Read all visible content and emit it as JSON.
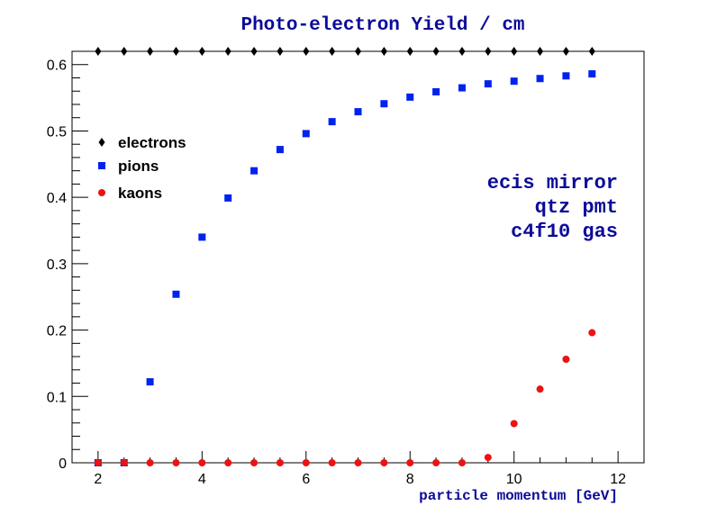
{
  "chart_data": {
    "type": "scatter",
    "title": "Photo-electron Yield / cm",
    "xlabel": "particle momentum [GeV]",
    "ylabel": "",
    "xlim": [
      1.5,
      12.5
    ],
    "ylim": [
      0,
      0.62
    ],
    "x_ticks": [
      2,
      4,
      6,
      8,
      10,
      12
    ],
    "y_ticks": [
      0,
      0.1,
      0.2,
      0.3,
      0.4,
      0.5,
      0.6
    ],
    "x_tick_labels": [
      "2",
      "4",
      "6",
      "8",
      "10",
      "12"
    ],
    "y_tick_labels": [
      "0",
      "0.1",
      "0.2",
      "0.3",
      "0.4",
      "0.5",
      "0.6"
    ],
    "grid": false,
    "legend_position": "left",
    "annotations": [
      "ecis mirror",
      "qtz pmt",
      "c4f10 gas"
    ],
    "series": [
      {
        "name": "electrons",
        "marker": "diamond",
        "color": "#000000",
        "x": [
          2,
          2.5,
          3,
          3.5,
          4,
          4.5,
          5,
          5.5,
          6,
          6.5,
          7,
          7.5,
          8,
          8.5,
          9,
          9.5,
          10,
          10.5,
          11,
          11.5
        ],
        "y": [
          0.62,
          0.62,
          0.62,
          0.62,
          0.62,
          0.62,
          0.62,
          0.62,
          0.62,
          0.62,
          0.62,
          0.62,
          0.62,
          0.62,
          0.62,
          0.62,
          0.62,
          0.62,
          0.62,
          0.62
        ]
      },
      {
        "name": "pions",
        "marker": "square",
        "color": "#0022ee",
        "x": [
          2,
          2.5,
          3,
          3.5,
          4,
          4.5,
          5,
          5.5,
          6,
          6.5,
          7,
          7.5,
          8,
          8.5,
          9,
          9.5,
          10,
          10.5,
          11,
          11.5
        ],
        "y": [
          0,
          0,
          0.122,
          0.254,
          0.34,
          0.399,
          0.44,
          0.472,
          0.496,
          0.514,
          0.529,
          0.541,
          0.551,
          0.559,
          0.565,
          0.571,
          0.575,
          0.579,
          0.583,
          0.586
        ]
      },
      {
        "name": "kaons",
        "marker": "circle",
        "color": "#ee1111",
        "x": [
          2,
          2.5,
          3,
          3.5,
          4,
          4.5,
          5,
          5.5,
          6,
          6.5,
          7,
          7.5,
          8,
          8.5,
          9,
          9.5,
          10,
          10.5,
          11,
          11.5
        ],
        "y": [
          0,
          0,
          0,
          0,
          0,
          0,
          0,
          0,
          0,
          0,
          0,
          0,
          0,
          0,
          0,
          0.008,
          0.059,
          0.111,
          0.156,
          0.196
        ]
      }
    ]
  }
}
